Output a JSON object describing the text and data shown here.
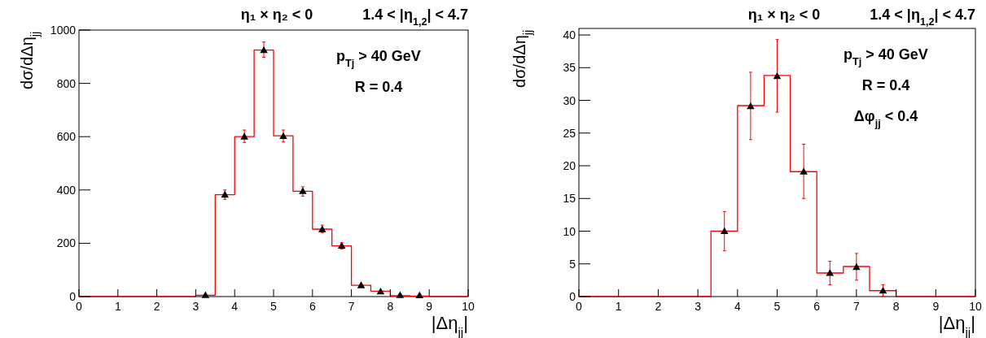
{
  "chart_data": [
    {
      "type": "histogram",
      "title": "η₁ × η₂ < 0",
      "subtitle": "1.4 < |η$_{1,2}$| < 4.7",
      "xlabel": "|Δη$_{jj}$|",
      "ylabel": "dσ/dΔη$_{jj}$",
      "annotations": [
        "p$_{Tj}$ > 40 GeV",
        "R = 0.4"
      ],
      "xlim": [
        0,
        10
      ],
      "xticks": [
        0,
        1,
        2,
        3,
        4,
        5,
        6,
        7,
        8,
        9,
        10
      ],
      "ylim": [
        0,
        1000
      ],
      "yticks": [
        0,
        200,
        400,
        600,
        800,
        1000
      ],
      "grid": false,
      "series": [
        {
          "type": "histogram",
          "color": "#ff0000",
          "bins": [
            0,
            0.5,
            1,
            1.5,
            2,
            2.5,
            3,
            3.5,
            4,
            4.5,
            5,
            5.5,
            6,
            6.5,
            7,
            7.5,
            8,
            8.5,
            9,
            9.5,
            10
          ],
          "values": [
            0,
            0,
            0,
            0,
            0,
            0,
            5,
            382,
            600,
            925,
            603,
            395,
            253,
            190,
            42,
            20,
            3,
            2,
            0,
            0
          ]
        },
        {
          "type": "scatter",
          "color": "#000000",
          "marker": "triangle",
          "x": [
            3.25,
            3.75,
            4.25,
            4.75,
            5.25,
            5.75,
            6.25,
            6.75,
            7.25,
            7.75,
            8.25,
            8.75
          ],
          "values": [
            3,
            380,
            598,
            922,
            600,
            393,
            250,
            188,
            40,
            17,
            3,
            2
          ],
          "errors": [
            null,
            [
              365,
              400
            ],
            [
              578,
              625
            ],
            [
              898,
              955
            ],
            [
              580,
              625
            ],
            [
              377,
              412
            ],
            [
              240,
              268
            ],
            [
              178,
              202
            ],
            null,
            null,
            null,
            null
          ]
        }
      ]
    },
    {
      "type": "histogram",
      "title": "η₁ × η₂ < 0",
      "subtitle": "1.4 < |η$_{1,2}$| < 4.7",
      "xlabel": "|Δη$_{jj}$|",
      "ylabel": "dσ/dΔη$_{jj}$",
      "annotations": [
        "p$_{Tj}$ > 40 GeV",
        "R = 0.4",
        "Δφ$_{jj}$ < 0.4"
      ],
      "xlim": [
        0,
        10
      ],
      "xticks": [
        0,
        1,
        2,
        3,
        4,
        5,
        6,
        7,
        8,
        9,
        10
      ],
      "ylim": [
        0,
        41
      ],
      "yticks": [
        0,
        5,
        10,
        15,
        20,
        25,
        30,
        35,
        40
      ],
      "grid": false,
      "series": [
        {
          "type": "histogram",
          "color": "#ff0000",
          "bins": [
            0,
            0.67,
            1.33,
            2,
            2.67,
            3.33,
            4,
            4.67,
            5.33,
            6,
            6.67,
            7.33,
            8,
            8.67,
            9.33,
            10
          ],
          "values": [
            0,
            0,
            0,
            0,
            0,
            10,
            29.2,
            33.8,
            19.1,
            3.6,
            4.6,
            0.9,
            0,
            0,
            0
          ]
        },
        {
          "type": "scatter",
          "color": "#000000",
          "marker": "triangle",
          "x": [
            3.67,
            4.33,
            5,
            5.67,
            6.33,
            7,
            7.67
          ],
          "values": [
            9.9,
            29,
            33.6,
            19,
            3.5,
            4.4,
            0.8
          ],
          "errors": [
            [
              7,
              13
            ],
            [
              24,
              34.3
            ],
            [
              28.2,
              39.3
            ],
            [
              15,
              23.3
            ],
            [
              1.8,
              5.4
            ],
            [
              2.5,
              6.6
            ],
            [
              0,
              1.8
            ]
          ]
        }
      ]
    }
  ]
}
